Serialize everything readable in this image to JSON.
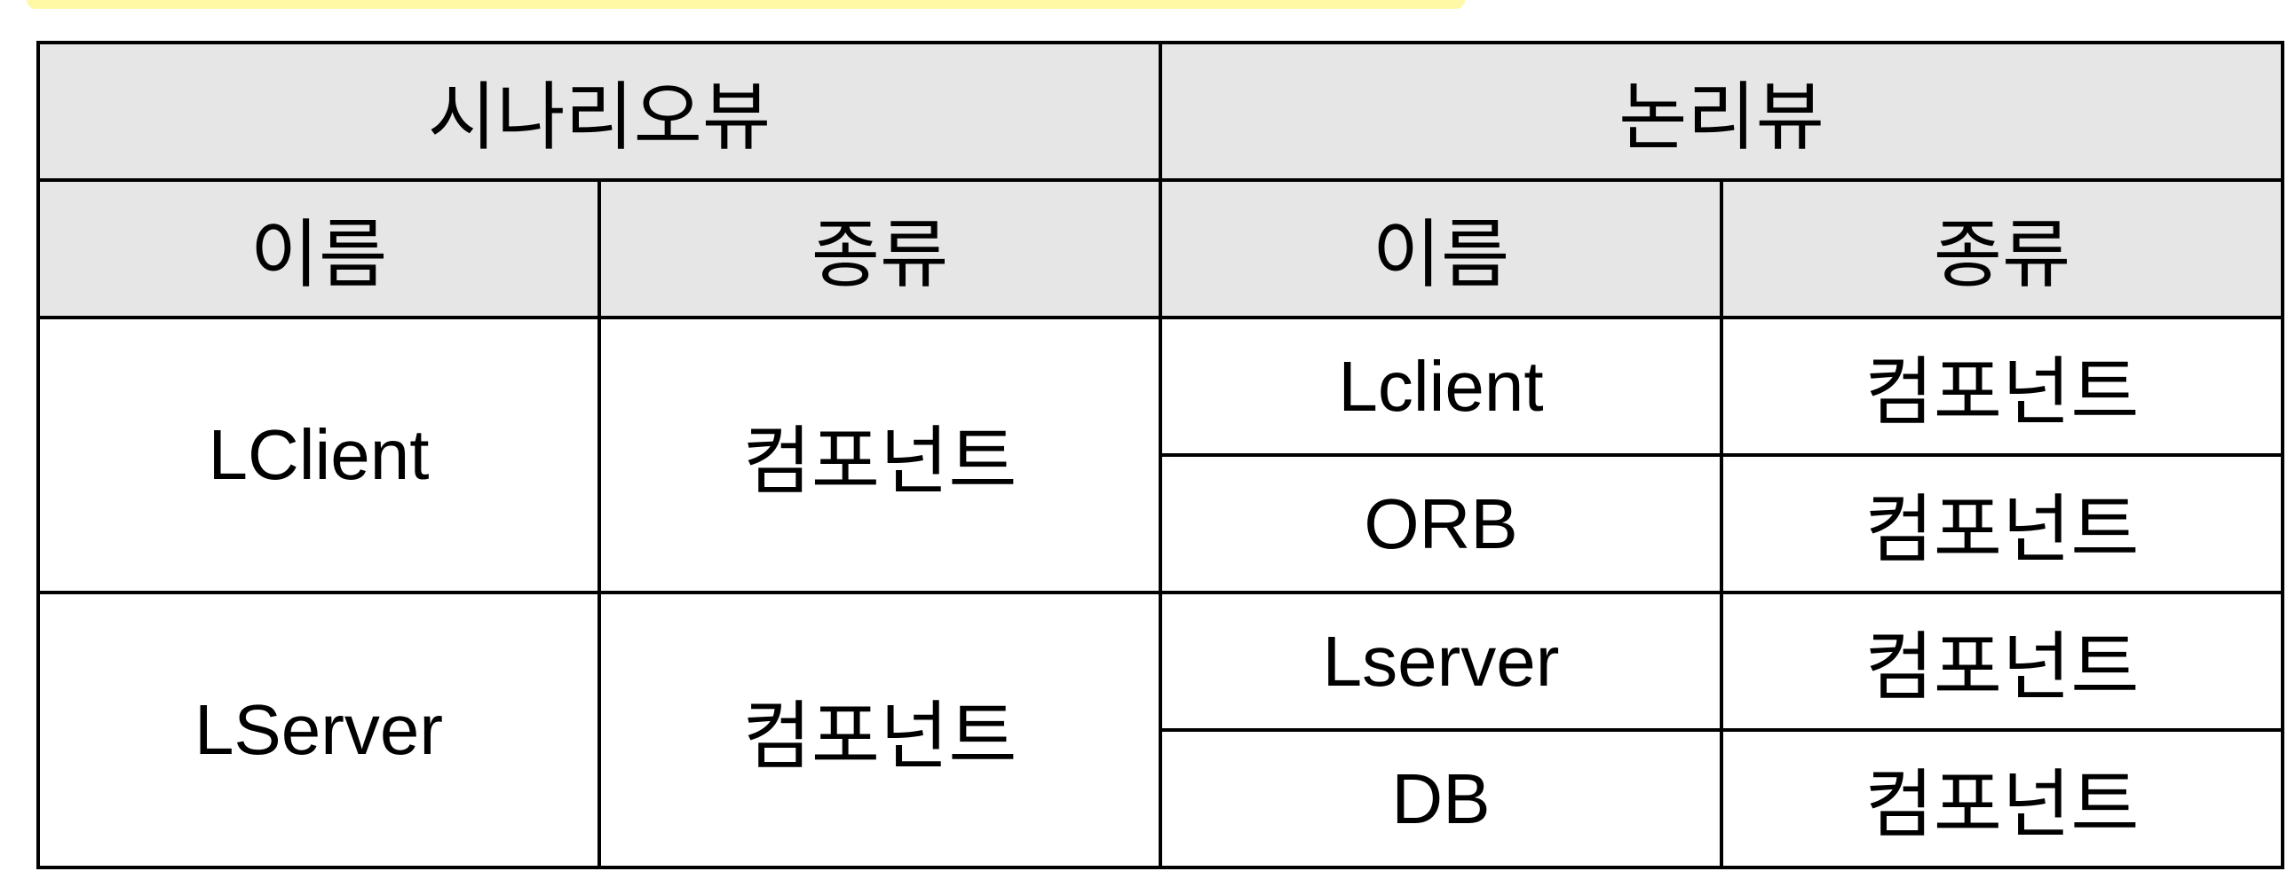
{
  "colors": {
    "header_bg": "#e6e6e6",
    "highlight": "#fff9a6",
    "border": "#000000"
  },
  "table": {
    "groups": {
      "scenario_view": "시나리오뷰",
      "logical_view": "논리뷰"
    },
    "columns": {
      "scenario_name": "이름",
      "scenario_type": "종류",
      "logical_name": "이름",
      "logical_type": "종류"
    },
    "rows": [
      {
        "scenario_name": "LClient",
        "scenario_type": "컴포넌트",
        "logical": [
          {
            "name": "Lclient",
            "type": "컴포넌트"
          },
          {
            "name": "ORB",
            "type": "컴포넌트"
          }
        ]
      },
      {
        "scenario_name": "LServer",
        "scenario_type": "컴포넌트",
        "logical": [
          {
            "name": "Lserver",
            "type": "컴포넌트"
          },
          {
            "name": "DB",
            "type": "컴포넌트"
          }
        ]
      }
    ]
  }
}
